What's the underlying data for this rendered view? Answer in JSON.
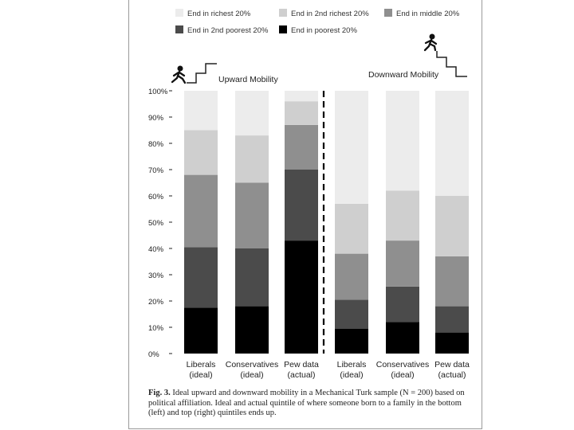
{
  "figure": {
    "caption_label": "Fig. 3.",
    "caption_text": "Ideal upward and downward mobility in a Mechanical Turk sample (N = 200) based on political affiliation. Ideal and actual quintile of where someone born to a family in the bottom (left) and top (right) quintiles ends up."
  },
  "chart_data": {
    "type": "bar",
    "stacked": true,
    "legend": [
      {
        "label": "End in richest 20%",
        "color": "#ececec"
      },
      {
        "label": "End in 2nd richest 20%",
        "color": "#cfcfcf"
      },
      {
        "label": "End in middle 20%",
        "color": "#8f8f8f"
      },
      {
        "label": "End in 2nd poorest 20%",
        "color": "#4b4b4b"
      },
      {
        "label": "End in poorest 20%",
        "color": "#000000"
      }
    ],
    "legend_position": "top",
    "y_ticks": [
      "0%",
      "10%",
      "20%",
      "30%",
      "40%",
      "50%",
      "60%",
      "70%",
      "80%",
      "90%",
      "100%"
    ],
    "ylim": [
      0,
      100
    ],
    "groups": [
      {
        "title": "Upward Mobility",
        "icon": "climbing-person-icon"
      },
      {
        "title": "Downward Mobility",
        "icon": "descending-person-icon"
      }
    ],
    "categories": [
      [
        "Liberals",
        "(ideal)"
      ],
      [
        "Conservatives",
        "(ideal)"
      ],
      [
        "Pew data",
        "(actual)"
      ],
      [
        "Liberals",
        "(ideal)"
      ],
      [
        "Conservatives",
        "(ideal)"
      ],
      [
        "Pew data",
        "(actual)"
      ]
    ],
    "series": [
      {
        "name": "End in poorest 20%",
        "values": [
          17.5,
          18,
          43,
          9.5,
          12,
          8
        ]
      },
      {
        "name": "End in 2nd poorest 20%",
        "values": [
          23,
          22,
          27,
          11,
          13.5,
          10
        ]
      },
      {
        "name": "End in middle 20%",
        "values": [
          27.5,
          25,
          17,
          17.5,
          17.5,
          19
        ]
      },
      {
        "name": "End in 2nd richest 20%",
        "values": [
          17,
          18,
          9,
          19,
          19,
          23
        ]
      },
      {
        "name": "End in richest 20%",
        "values": [
          15,
          17,
          4,
          43,
          38,
          40
        ]
      }
    ],
    "grid": false
  }
}
